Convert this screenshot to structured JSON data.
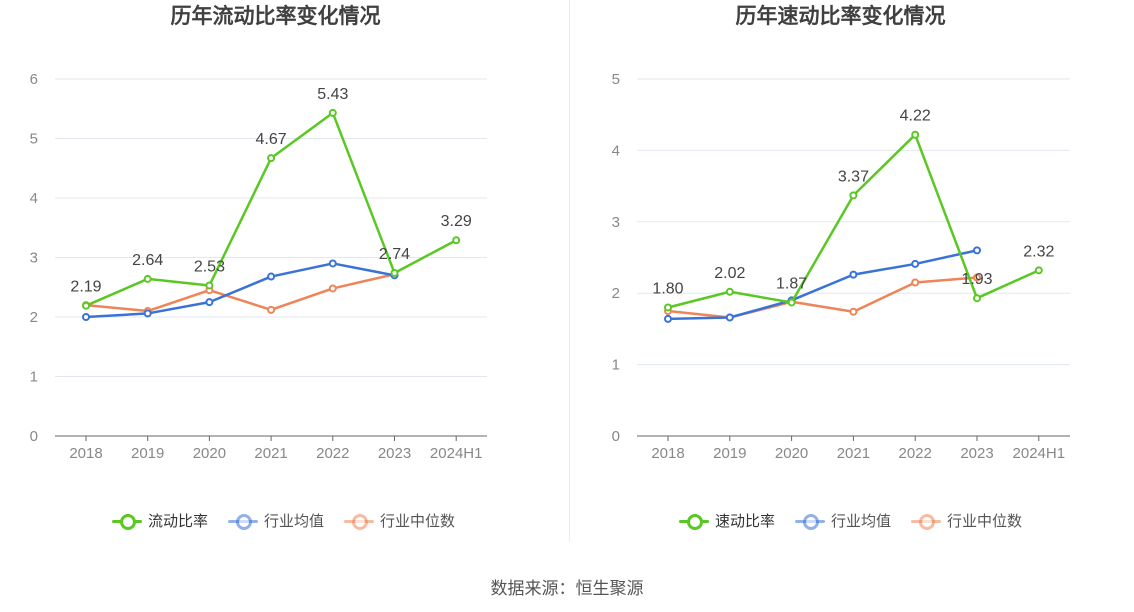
{
  "source_text": "数据来源：恒生聚源",
  "chart_data": [
    {
      "type": "line",
      "title": "历年流动比率变化情况",
      "xlabel": "",
      "ylabel": "",
      "categories": [
        "2018",
        "2019",
        "2020",
        "2021",
        "2022",
        "2023",
        "2024H1"
      ],
      "ylim": [
        0,
        6
      ],
      "yticks": [
        0,
        1,
        2,
        3,
        4,
        5,
        6
      ],
      "grid": true,
      "legend_position": "bottom-center",
      "series": [
        {
          "name": "流动比率",
          "color": "#5ac823",
          "values": [
            2.19,
            2.64,
            2.53,
            4.67,
            5.43,
            2.74,
            3.29
          ],
          "labels": [
            "2.19",
            "2.64",
            "2.53",
            "4.67",
            "5.43",
            "2.74",
            "3.29"
          ]
        },
        {
          "name": "行业均值",
          "color": "#3a72d8",
          "values": [
            2.0,
            2.06,
            2.25,
            2.68,
            2.9,
            2.7,
            null
          ]
        },
        {
          "name": "行业中位数",
          "color": "#ee8458",
          "values": [
            2.2,
            2.1,
            2.45,
            2.12,
            2.48,
            2.72,
            null
          ]
        }
      ]
    },
    {
      "type": "line",
      "title": "历年速动比率变化情况",
      "xlabel": "",
      "ylabel": "",
      "categories": [
        "2018",
        "2019",
        "2020",
        "2021",
        "2022",
        "2023",
        "2024H1"
      ],
      "ylim": [
        0,
        5
      ],
      "yticks": [
        0,
        1,
        2,
        3,
        4,
        5
      ],
      "grid": true,
      "legend_position": "bottom-center",
      "series": [
        {
          "name": "速动比率",
          "color": "#5ac823",
          "values": [
            1.8,
            2.02,
            1.87,
            3.37,
            4.22,
            1.93,
            2.32
          ],
          "labels": [
            "1.80",
            "2.02",
            "1.87",
            "3.37",
            "4.22",
            "1.93",
            "2.32"
          ]
        },
        {
          "name": "行业均值",
          "color": "#3a72d8",
          "values": [
            1.64,
            1.66,
            1.9,
            2.26,
            2.41,
            2.6,
            null
          ]
        },
        {
          "name": "行业中位数",
          "color": "#ee8458",
          "values": [
            1.75,
            1.66,
            1.88,
            1.74,
            2.15,
            2.22,
            null
          ]
        }
      ]
    }
  ]
}
